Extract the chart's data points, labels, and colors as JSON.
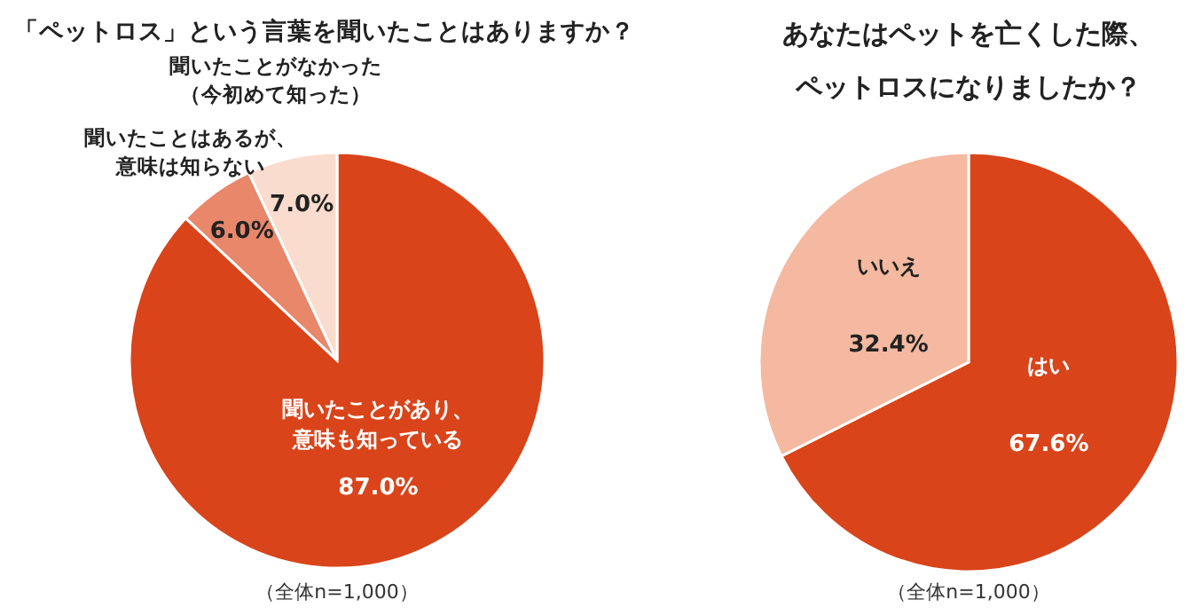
{
  "chart_data": [
    {
      "type": "pie",
      "title": "「ペットロス」という言葉を聞いたことはありますか？",
      "categories": [
        "聞いたことがあり、意味も知っている",
        "聞いたことはあるが、意味は知らない",
        "聞いたことがなかった（今初めて知った）"
      ],
      "values": [
        87.0,
        6.0,
        7.0
      ],
      "value_labels": [
        "87.0%",
        "6.0%",
        "7.0%"
      ],
      "colors": [
        "#d9441a",
        "#e8876a",
        "#f9dccd"
      ],
      "annotations": [
        "（全体n=1,000）"
      ]
    },
    {
      "type": "pie",
      "title": "あなたはペットを亡くした際、ペットロスになりましたか？",
      "categories": [
        "はい",
        "いいえ"
      ],
      "values": [
        67.6,
        32.4
      ],
      "value_labels": [
        "67.6%",
        "32.4%"
      ],
      "colors": [
        "#d9441a",
        "#f4b9a0"
      ],
      "annotations": [
        "（全体n=1,000）"
      ]
    }
  ]
}
